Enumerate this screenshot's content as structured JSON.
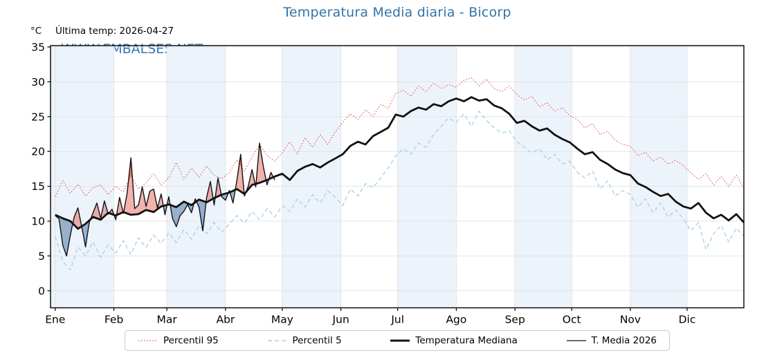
{
  "chart_data": {
    "type": "line",
    "title": "Temperatura Media diaria - Bicorp",
    "y_unit": "°C",
    "last_temp_note": "Última temp: 2026-04-27",
    "watermark": "WWW.EMBALSES.NET",
    "xlim_days": [
      -1.5,
      365
    ],
    "ylim": [
      -2.45,
      35.2
    ],
    "yticks": [
      0,
      5,
      10,
      15,
      20,
      25,
      30,
      35
    ],
    "grid": true,
    "legend_position": "bottom",
    "months": [
      {
        "label": "Ene",
        "start_day": 1
      },
      {
        "label": "Feb",
        "start_day": 32
      },
      {
        "label": "Mar",
        "start_day": 60
      },
      {
        "label": "Abr",
        "start_day": 91
      },
      {
        "label": "May",
        "start_day": 121
      },
      {
        "label": "Jun",
        "start_day": 152
      },
      {
        "label": "Jul",
        "start_day": 182
      },
      {
        "label": "Ago",
        "start_day": 213
      },
      {
        "label": "Sep",
        "start_day": 244
      },
      {
        "label": "Oct",
        "start_day": 274
      },
      {
        "label": "Nov",
        "start_day": 305
      },
      {
        "label": "Dic",
        "start_day": 335
      }
    ],
    "shaded_month_indexes": [
      0,
      2,
      4,
      6,
      8,
      10
    ],
    "colors": {
      "title": "#3274a8",
      "watermark": "#3277b2",
      "band": "#edf3fa",
      "grid": "#e0e4e8",
      "axis": "#000000",
      "fill_above_median": "rgba(228,85,73,0.45)",
      "fill_above_p95": "rgba(222,60,50,0.50)",
      "fill_below_median": "rgba(80,122,168,0.55)",
      "fill_below_p5": "rgba(70,105,150,0.55)"
    },
    "series": [
      {
        "name": "Percentil 95",
        "color": "#e04b4b",
        "style": "dotted",
        "width": 1.1,
        "day_start": 1,
        "day_step": 4,
        "values": [
          13.5,
          15.8,
          14.0,
          15.3,
          13.6,
          14.8,
          15.2,
          13.8,
          15.0,
          14.2,
          16.5,
          14.6,
          15.5,
          16.8,
          15.2,
          16.2,
          18.4,
          16.0,
          17.6,
          16.3,
          17.9,
          16.6,
          16.1,
          17.0,
          18.8,
          17.2,
          19.2,
          21.0,
          19.4,
          18.6,
          19.8,
          21.4,
          19.6,
          22.0,
          20.6,
          22.4,
          21.0,
          22.8,
          24.2,
          25.4,
          24.6,
          26.0,
          25.0,
          26.8,
          26.2,
          28.3,
          28.8,
          27.9,
          29.4,
          28.6,
          29.8,
          29.0,
          29.6,
          29.2,
          30.2,
          30.6,
          29.4,
          30.4,
          29.0,
          28.6,
          29.4,
          28.2,
          27.4,
          27.9,
          26.4,
          27.0,
          25.8,
          26.3,
          25.1,
          24.6,
          23.4,
          24.0,
          22.4,
          22.9,
          21.6,
          21.0,
          20.8,
          19.4,
          19.9,
          18.6,
          19.2,
          18.2,
          18.7,
          18.0,
          16.9,
          16.0,
          16.8,
          15.2,
          16.4,
          15.0,
          16.6,
          14.7
        ]
      },
      {
        "name": "Percentil 5",
        "color": "#a6d0e2",
        "style": "dashed",
        "width": 1.3,
        "day_start": 1,
        "day_step": 4,
        "values": [
          7.8,
          4.2,
          3.0,
          6.3,
          5.0,
          7.0,
          4.8,
          6.6,
          5.4,
          7.2,
          5.2,
          7.6,
          6.2,
          8.0,
          6.8,
          8.3,
          6.9,
          8.8,
          7.4,
          9.4,
          8.2,
          9.8,
          8.4,
          9.6,
          10.8,
          9.7,
          11.4,
          10.2,
          11.8,
          10.6,
          12.2,
          11.4,
          13.2,
          12.0,
          13.8,
          12.6,
          14.4,
          13.4,
          12.2,
          14.6,
          13.6,
          15.4,
          14.8,
          16.2,
          17.6,
          19.4,
          20.4,
          19.6,
          21.2,
          20.6,
          22.4,
          23.6,
          24.8,
          24.2,
          25.4,
          23.6,
          25.8,
          24.4,
          23.4,
          22.6,
          23.0,
          21.4,
          20.6,
          19.8,
          20.4,
          18.8,
          19.6,
          18.2,
          18.6,
          17.0,
          16.2,
          17.2,
          14.6,
          15.8,
          13.6,
          14.4,
          13.8,
          12.0,
          13.2,
          11.2,
          12.6,
          10.6,
          11.6,
          10.4,
          8.6,
          9.8,
          5.9,
          8.2,
          9.4,
          7.0,
          9.0,
          7.8
        ]
      },
      {
        "name": "Temperatura Mediana",
        "color": "#111111",
        "style": "solid",
        "width": 2.8,
        "day_start": 1,
        "day_step": 4,
        "values": [
          10.9,
          10.4,
          10.0,
          8.9,
          9.6,
          10.6,
          10.2,
          11.2,
          10.8,
          11.3,
          10.9,
          11.0,
          11.6,
          11.3,
          12.1,
          12.4,
          12.0,
          12.8,
          12.3,
          13.1,
          12.7,
          13.3,
          13.8,
          14.1,
          14.6,
          13.9,
          15.2,
          15.5,
          15.9,
          16.4,
          16.8,
          15.9,
          17.2,
          17.8,
          18.2,
          17.7,
          18.4,
          19.0,
          19.6,
          20.8,
          21.4,
          21.0,
          22.2,
          22.8,
          23.4,
          25.3,
          25.0,
          25.8,
          26.3,
          26.0,
          26.8,
          26.5,
          27.2,
          27.6,
          27.2,
          27.8,
          27.3,
          27.5,
          26.6,
          26.2,
          25.4,
          24.1,
          24.4,
          23.6,
          23.0,
          23.3,
          22.4,
          21.8,
          21.3,
          20.4,
          19.6,
          19.9,
          18.8,
          18.2,
          17.4,
          16.9,
          16.6,
          15.4,
          14.9,
          14.2,
          13.6,
          13.9,
          12.8,
          12.1,
          11.8,
          12.6,
          11.2,
          10.4,
          10.9,
          10.1,
          11.0,
          9.8
        ]
      },
      {
        "name": "T. Media 2026",
        "color": "#111111",
        "style": "solid",
        "width": 1.4,
        "day_start": 1,
        "day_step": 2,
        "values": [
          10.8,
          10.3,
          6.5,
          5.0,
          8.0,
          10.6,
          11.9,
          9.2,
          6.3,
          9.8,
          11.2,
          12.6,
          10.4,
          12.9,
          11.0,
          11.7,
          10.2,
          13.4,
          11.1,
          14.0,
          19.1,
          11.8,
          12.3,
          14.9,
          12.1,
          14.3,
          14.6,
          11.9,
          13.9,
          10.9,
          13.5,
          10.4,
          9.2,
          10.8,
          11.4,
          12.4,
          11.2,
          13.2,
          12.0,
          8.6,
          13.4,
          15.7,
          12.3,
          16.2,
          13.5,
          13.0,
          14.4,
          12.6,
          15.8,
          19.6,
          13.6,
          15.0,
          17.4,
          14.9,
          21.2,
          17.8,
          15.2,
          17.0,
          15.9
        ]
      }
    ]
  },
  "legend": {
    "items": [
      {
        "label": "Percentil 95",
        "color": "#e04b4b",
        "style": "dotted",
        "width": 1.2
      },
      {
        "label": "Percentil 5",
        "color": "#a6d0e2",
        "style": "dashed",
        "width": 1.4
      },
      {
        "label": "Temperatura Mediana",
        "color": "#111111",
        "style": "solid",
        "width": 3.0
      },
      {
        "label": "T. Media 2026",
        "color": "#111111",
        "style": "solid",
        "width": 1.2
      }
    ]
  }
}
